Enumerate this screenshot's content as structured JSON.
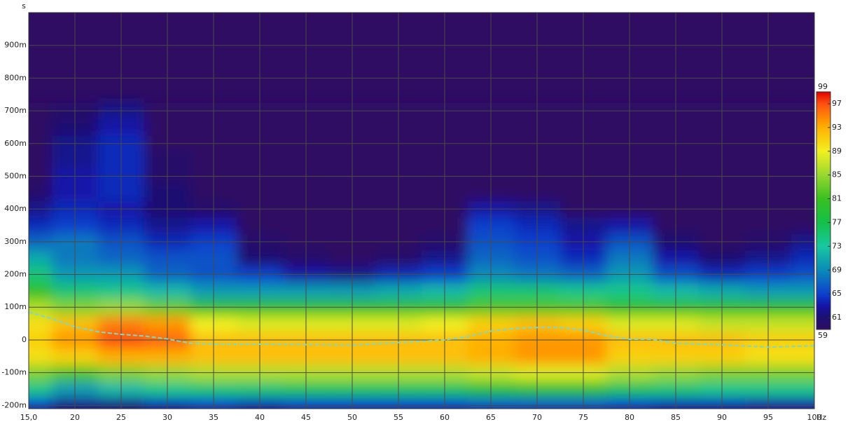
{
  "chart_data": {
    "type": "heatmap",
    "x_unit": "Hz",
    "y_unit": "s",
    "x": [
      15,
      20,
      25,
      30,
      35,
      40,
      45,
      50,
      55,
      60,
      65,
      70,
      75,
      80,
      85,
      90,
      95,
      100
    ],
    "y": [
      -0.2,
      -0.15,
      -0.1,
      -0.05,
      0,
      0.05,
      0.1,
      0.15,
      0.2,
      0.25,
      0.3,
      0.35,
      0.4,
      0.45,
      0.5,
      0.55,
      0.6,
      0.65,
      0.7
    ],
    "z": [
      [
        65,
        62,
        62,
        64,
        65,
        64,
        65,
        65,
        65,
        65,
        66,
        66,
        66,
        65,
        64,
        64,
        63,
        63
      ],
      [
        74,
        70,
        72,
        74,
        75,
        75,
        76,
        76,
        76,
        76,
        78,
        79,
        79,
        76,
        75,
        74,
        74,
        74
      ],
      [
        84,
        82,
        84,
        85,
        86,
        86,
        86,
        86,
        86,
        86,
        87,
        88,
        88,
        86,
        85,
        84,
        84,
        84
      ],
      [
        90,
        91,
        93,
        93,
        92,
        92,
        92,
        92,
        92,
        92,
        93,
        94,
        94,
        91,
        91,
        91,
        90,
        90
      ],
      [
        91,
        94,
        97,
        96,
        92,
        92,
        92,
        92,
        92,
        92,
        93,
        94,
        94,
        92,
        92,
        92,
        91,
        91
      ],
      [
        90,
        92,
        95,
        94,
        89,
        88,
        88,
        88,
        88,
        89,
        91,
        92,
        91,
        88,
        88,
        87,
        87,
        87
      ],
      [
        86,
        84,
        85,
        83,
        80,
        80,
        80,
        80,
        80,
        80,
        82,
        82,
        82,
        80,
        80,
        80,
        80,
        80
      ],
      [
        80,
        75,
        74,
        72,
        70,
        70,
        70,
        70,
        71,
        72,
        75,
        75,
        74,
        74,
        72,
        71,
        70,
        70
      ],
      [
        75,
        70,
        70,
        67,
        66,
        65,
        63,
        62,
        64,
        65,
        69,
        68,
        67,
        70,
        66,
        64,
        65,
        66
      ],
      [
        71,
        68,
        67,
        66,
        66,
        61,
        60,
        59,
        60,
        62,
        67,
        66,
        64,
        68,
        63,
        61,
        62,
        64
      ],
      [
        67,
        68,
        66,
        64,
        65,
        60,
        59,
        59,
        59,
        60,
        66,
        65,
        63,
        66,
        61,
        59,
        60,
        62
      ],
      [
        64,
        65,
        64,
        62,
        63,
        59,
        59,
        59,
        59,
        59,
        65,
        64,
        62,
        63,
        59,
        59,
        59,
        59
      ],
      [
        62,
        64,
        63,
        61,
        60,
        59,
        59,
        59,
        59,
        59,
        63,
        62,
        59,
        59,
        59,
        59,
        59,
        59
      ],
      [
        60,
        63,
        64,
        61,
        59,
        59,
        59,
        59,
        59,
        59,
        59,
        59,
        59,
        59,
        59,
        59,
        59,
        59
      ],
      [
        59,
        63,
        64,
        60,
        59,
        59,
        59,
        59,
        59,
        59,
        59,
        59,
        59,
        59,
        59,
        59,
        59,
        59
      ],
      [
        59,
        62,
        64,
        60,
        59,
        59,
        59,
        59,
        59,
        59,
        59,
        59,
        59,
        59,
        59,
        59,
        59,
        59
      ],
      [
        59,
        62,
        64,
        59,
        59,
        59,
        59,
        59,
        59,
        59,
        59,
        59,
        59,
        59,
        59,
        59,
        59,
        59
      ],
      [
        59,
        61,
        63,
        59,
        59,
        59,
        59,
        59,
        59,
        59,
        59,
        59,
        59,
        59,
        59,
        59,
        59,
        59
      ],
      [
        59,
        60,
        62,
        59,
        59,
        59,
        59,
        59,
        59,
        59,
        59,
        59,
        59,
        59,
        59,
        59,
        59,
        59
      ]
    ],
    "xlim": [
      15,
      100
    ],
    "ylim": [
      -0.21,
      1.0
    ],
    "xticks": [
      {
        "value": 15,
        "label": "15,0"
      },
      20,
      25,
      30,
      35,
      40,
      45,
      50,
      55,
      60,
      65,
      70,
      75,
      80,
      85,
      90,
      95,
      100
    ],
    "yticks": [
      {
        "value": -0.2,
        "label": "-200m"
      },
      {
        "value": -0.1,
        "label": "-100m"
      },
      0,
      {
        "value": 0.1,
        "label": "100m"
      },
      {
        "value": 0.2,
        "label": "200m"
      },
      {
        "value": 0.3,
        "label": "300m"
      },
      {
        "value": 0.4,
        "label": "400m"
      },
      {
        "value": 0.5,
        "label": "500m"
      },
      {
        "value": 0.6,
        "label": "600m"
      },
      {
        "value": 0.7,
        "label": "700m"
      },
      {
        "value": 0.8,
        "label": "800m"
      },
      {
        "value": 0.9,
        "label": "900m"
      }
    ],
    "grid": true,
    "colorbar": {
      "range": [
        59,
        99
      ],
      "ticks": [
        59,
        61,
        65,
        69,
        73,
        77,
        81,
        85,
        89,
        93,
        97,
        99
      ],
      "colormap": [
        [
          59,
          "#2e0d63"
        ],
        [
          61,
          "#1c1072"
        ],
        [
          63,
          "#1414a8"
        ],
        [
          65,
          "#0c40cc"
        ],
        [
          69,
          "#0a8cb8"
        ],
        [
          73,
          "#18c8a0"
        ],
        [
          77,
          "#14c048"
        ],
        [
          81,
          "#38c020"
        ],
        [
          85,
          "#98d830"
        ],
        [
          89,
          "#f2f020"
        ],
        [
          93,
          "#ffb000"
        ],
        [
          97,
          "#ff5010"
        ],
        [
          99,
          "#e00000"
        ]
      ]
    },
    "peak_line": {
      "color": "#7fd8c8",
      "x": [
        15,
        17.5,
        20,
        22.5,
        25,
        27.5,
        30,
        32.5,
        35,
        40,
        45,
        50,
        55,
        60,
        62.5,
        65,
        67.5,
        70,
        72.5,
        75,
        77.5,
        80,
        82.5,
        85,
        90,
        95,
        100
      ],
      "y": [
        0.085,
        0.065,
        0.04,
        0.025,
        0.017,
        0.012,
        0.003,
        -0.01,
        -0.013,
        -0.013,
        -0.014,
        -0.016,
        -0.008,
        0.0,
        0.01,
        0.027,
        0.035,
        0.038,
        0.038,
        0.03,
        0.013,
        0.002,
        0.002,
        -0.01,
        -0.015,
        -0.022,
        -0.018
      ]
    }
  }
}
